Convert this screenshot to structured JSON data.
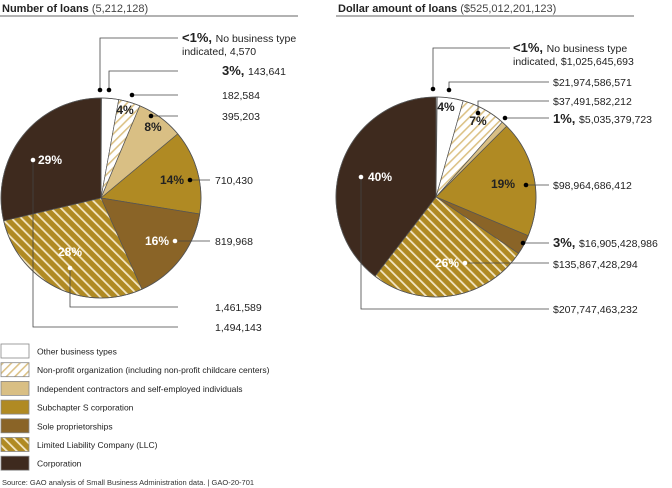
{
  "chart_data": [
    {
      "type": "pie",
      "title": "Number of loans",
      "total_label": "(5,212,128)",
      "categories": [
        "No business type indicated",
        "Other business types",
        "Non-profit organization (including non-profit childcare centers)",
        "Independent contractors and self-employed individuals",
        "Subchapter S corporation",
        "Sole proprietorships",
        "Limited Liability Company (LLC)",
        "Corporation"
      ],
      "values": [
        4570,
        143641,
        182584,
        395203,
        710430,
        819968,
        1461589,
        1494143
      ],
      "value_labels": [
        "4,570",
        "143,641",
        "182,584",
        "395,203",
        "710,430",
        "819,968",
        "1,461,589",
        "1,494,143"
      ],
      "percent_labels": [
        "<1%",
        "3%",
        "4%",
        "8%",
        "14%",
        "16%",
        "28%",
        "29%"
      ],
      "callouts": [
        {
          "bold": "<1%,",
          "text": "No business type",
          "text2": "indicated, 4,570"
        },
        {
          "bold": "3%,",
          "text": "143,641"
        },
        {
          "bold": "",
          "text": "182,584"
        },
        {
          "bold": "",
          "text": "395,203"
        },
        {
          "bold": "",
          "text": "710,430"
        },
        {
          "bold": "",
          "text": "819,968"
        },
        {
          "bold": "",
          "text": "1,461,589"
        },
        {
          "bold": "",
          "text": "1,494,143"
        }
      ]
    },
    {
      "type": "pie",
      "title": "Dollar amount of loans",
      "total_label": "($525,012,201,123)",
      "categories": [
        "No business type indicated",
        "Other business types",
        "Non-profit organization (including non-profit childcare centers)",
        "Independent contractors and self-employed individuals",
        "Subchapter S corporation",
        "Sole proprietorships",
        "Limited Liability Company (LLC)",
        "Corporation"
      ],
      "values": [
        1025645693,
        21974586571,
        37491582212,
        5035379723,
        98964686412,
        16905428986,
        135867428294,
        207747463232
      ],
      "value_labels": [
        "$1,025,645,693",
        "$21,974,586,571",
        "$37,491,582,212",
        "$5,035,379,723",
        "$98,964,686,412",
        "$16,905,428,986",
        "$135,867,428,294",
        "$207,747,463,232"
      ],
      "percent_labels": [
        "<1%",
        "4%",
        "7%",
        "1%",
        "19%",
        "3%",
        "26%",
        "40%"
      ],
      "callouts": [
        {
          "bold": "<1%,",
          "text": "No business type",
          "text2": "indicated, $1,025,645,693"
        },
        {
          "bold": "",
          "text": "$21,974,586,571"
        },
        {
          "bold": "",
          "text": "$37,491,582,212"
        },
        {
          "bold": "1%,",
          "text": "$5,035,379,723"
        },
        {
          "bold": "",
          "text": "$98,964,686,412"
        },
        {
          "bold": "3%,",
          "text": "$16,905,428,986"
        },
        {
          "bold": "",
          "text": "$135,867,428,294"
        },
        {
          "bold": "",
          "text": "$207,747,463,232"
        }
      ]
    }
  ],
  "legend": [
    {
      "label": "Other business types",
      "color": "#ffffff",
      "pattern": "none"
    },
    {
      "label": "Non-profit organization (including non-profit childcare centers)",
      "color": "#e3c98e",
      "pattern": "hatch-light"
    },
    {
      "label": "Independent contractors and self-employed individuals",
      "color": "#d9bf84",
      "pattern": "none"
    },
    {
      "label": "Subchapter S corporation",
      "color": "#b08a23",
      "pattern": "none"
    },
    {
      "label": "Sole proprietorships",
      "color": "#8a6427",
      "pattern": "none"
    },
    {
      "label": "Limited Liability Company (LLC)",
      "color": "#b08a23",
      "pattern": "hatch-gold"
    },
    {
      "label": "Corporation",
      "color": "#3e2a1e",
      "pattern": "none"
    }
  ],
  "slice_colors": [
    "#ffffff",
    "#ffffff",
    "url(#hatchLight)",
    "#d9bf84",
    "#b08a23",
    "#8a6427",
    "url(#hatchGold)",
    "#3e2a1e"
  ],
  "source": "Source: GAO analysis of Small Business Administration data.  |  GAO-20-701"
}
